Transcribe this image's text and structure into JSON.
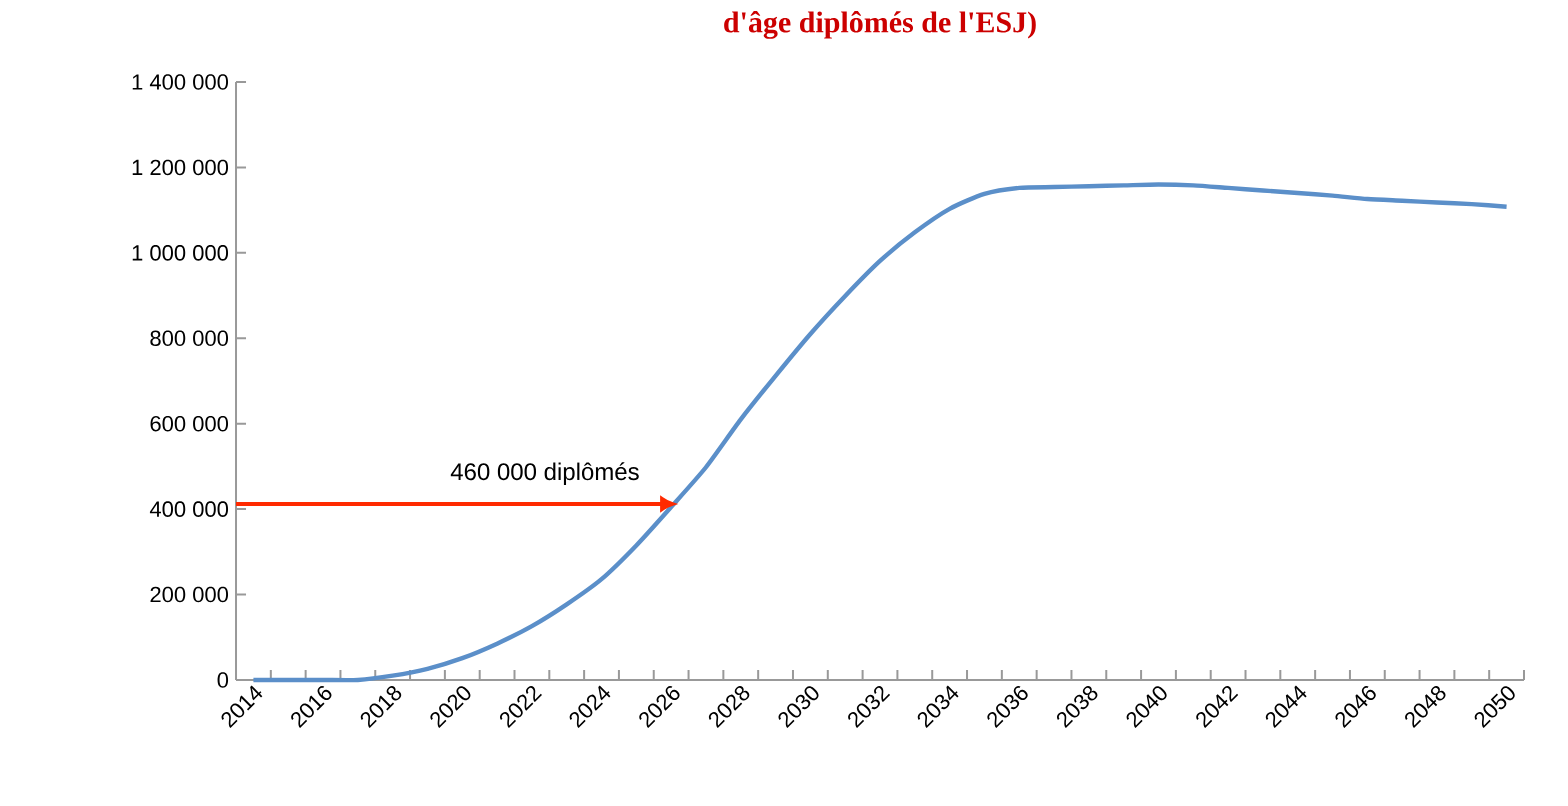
{
  "chart_data": {
    "type": "line",
    "title": "d'âge diplômés de l'ESJ)",
    "categories": [
      "2014",
      null,
      "2016",
      null,
      "2018",
      null,
      "2020",
      null,
      "2022",
      null,
      "2024",
      null,
      "2026",
      null,
      "2028",
      null,
      "2030",
      null,
      "2032",
      null,
      "2034",
      null,
      "2036",
      null,
      "2038",
      null,
      "2040",
      null,
      "2042",
      null,
      "2044",
      null,
      "2046",
      null,
      "2048",
      null,
      "2050"
    ],
    "series": [
      {
        "color": "#5b8fc9",
        "values": [
          0,
          0,
          0,
          0,
          10000,
          26000,
          51000,
          85000,
          126000,
          177000,
          236000,
          315000,
          405000,
          498000,
          610000,
          712000,
          810000,
          899000,
          981000,
          1048000,
          1103000,
          1138000,
          1152000,
          1154000,
          1156000,
          1158000,
          1160000,
          1158000,
          1152000,
          1146000,
          1140000,
          1134000,
          1126000,
          1122000,
          1118000,
          1114000,
          1108000
        ]
      }
    ],
    "ylim": [
      0,
      1400000
    ],
    "yticks": [
      0,
      {
        "value": 200000,
        "label": "200 000"
      },
      {
        "value": 400000,
        "label": "400 000"
      },
      {
        "value": 600000,
        "label": "600 000"
      },
      {
        "value": 800000,
        "label": "800 000"
      },
      {
        "value": 1000000,
        "label": "1 000 000"
      },
      {
        "value": 1200000,
        "label": "1 200 000"
      },
      {
        "value": 1400000,
        "label": "1 400 000"
      }
    ],
    "ref_lines": [
      {
        "axis": "y",
        "value": 412000,
        "label": "460 000 diplômés",
        "color": "#ff2a00"
      }
    ],
    "grid": false,
    "marker": "none",
    "line_style": "solid"
  }
}
